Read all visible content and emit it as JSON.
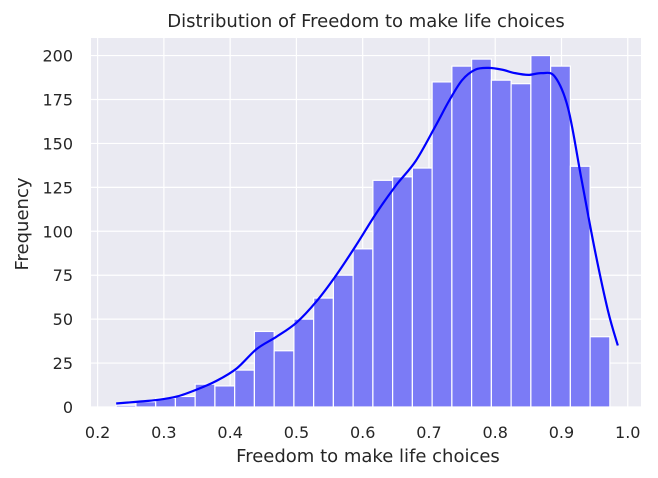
{
  "chart_data": {
    "type": "bar",
    "subtype": "histogram-with-kde",
    "title": "Distribution of Freedom to make life choices",
    "xlabel": "Freedom to make life choices",
    "ylabel": "Frequency",
    "xlim": [
      0.19,
      1.02
    ],
    "ylim": [
      0,
      210
    ],
    "x_ticks": [
      0.2,
      0.3,
      0.4,
      0.5,
      0.6,
      0.7,
      0.8,
      0.9,
      1.0
    ],
    "x_tick_labels": [
      "0.2",
      "0.3",
      "0.4",
      "0.5",
      "0.6",
      "0.7",
      "0.8",
      "0.9",
      "1.0"
    ],
    "y_ticks": [
      0,
      25,
      50,
      75,
      100,
      125,
      150,
      175,
      200
    ],
    "y_tick_labels": [
      "0",
      "25",
      "50",
      "75",
      "100",
      "125",
      "150",
      "175",
      "200"
    ],
    "grid": true,
    "bar_color": "#7b7bf6",
    "kde_color": "#0000ff",
    "background_color": "#eaeaf2",
    "bins": {
      "start": 0.228,
      "width": 0.0298,
      "counts": [
        1,
        3,
        5,
        6,
        13,
        12,
        21,
        43,
        32,
        50,
        62,
        75,
        90,
        129,
        131,
        136,
        185,
        194,
        198,
        186,
        184,
        200,
        194,
        137,
        40
      ]
    },
    "kde": {
      "x": [
        0.228,
        0.26,
        0.29,
        0.32,
        0.35,
        0.38,
        0.41,
        0.44,
        0.47,
        0.5,
        0.53,
        0.56,
        0.59,
        0.62,
        0.65,
        0.68,
        0.71,
        0.73,
        0.75,
        0.77,
        0.79,
        0.81,
        0.83,
        0.85,
        0.87,
        0.89,
        0.91,
        0.93,
        0.95,
        0.97,
        0.985
      ],
      "y": [
        2,
        3,
        4,
        6,
        10,
        15,
        22,
        33,
        40,
        48,
        60,
        75,
        92,
        110,
        126,
        140,
        160,
        174,
        186,
        192,
        193,
        192,
        190,
        189,
        190,
        188,
        170,
        130,
        90,
        55,
        35
      ]
    }
  }
}
